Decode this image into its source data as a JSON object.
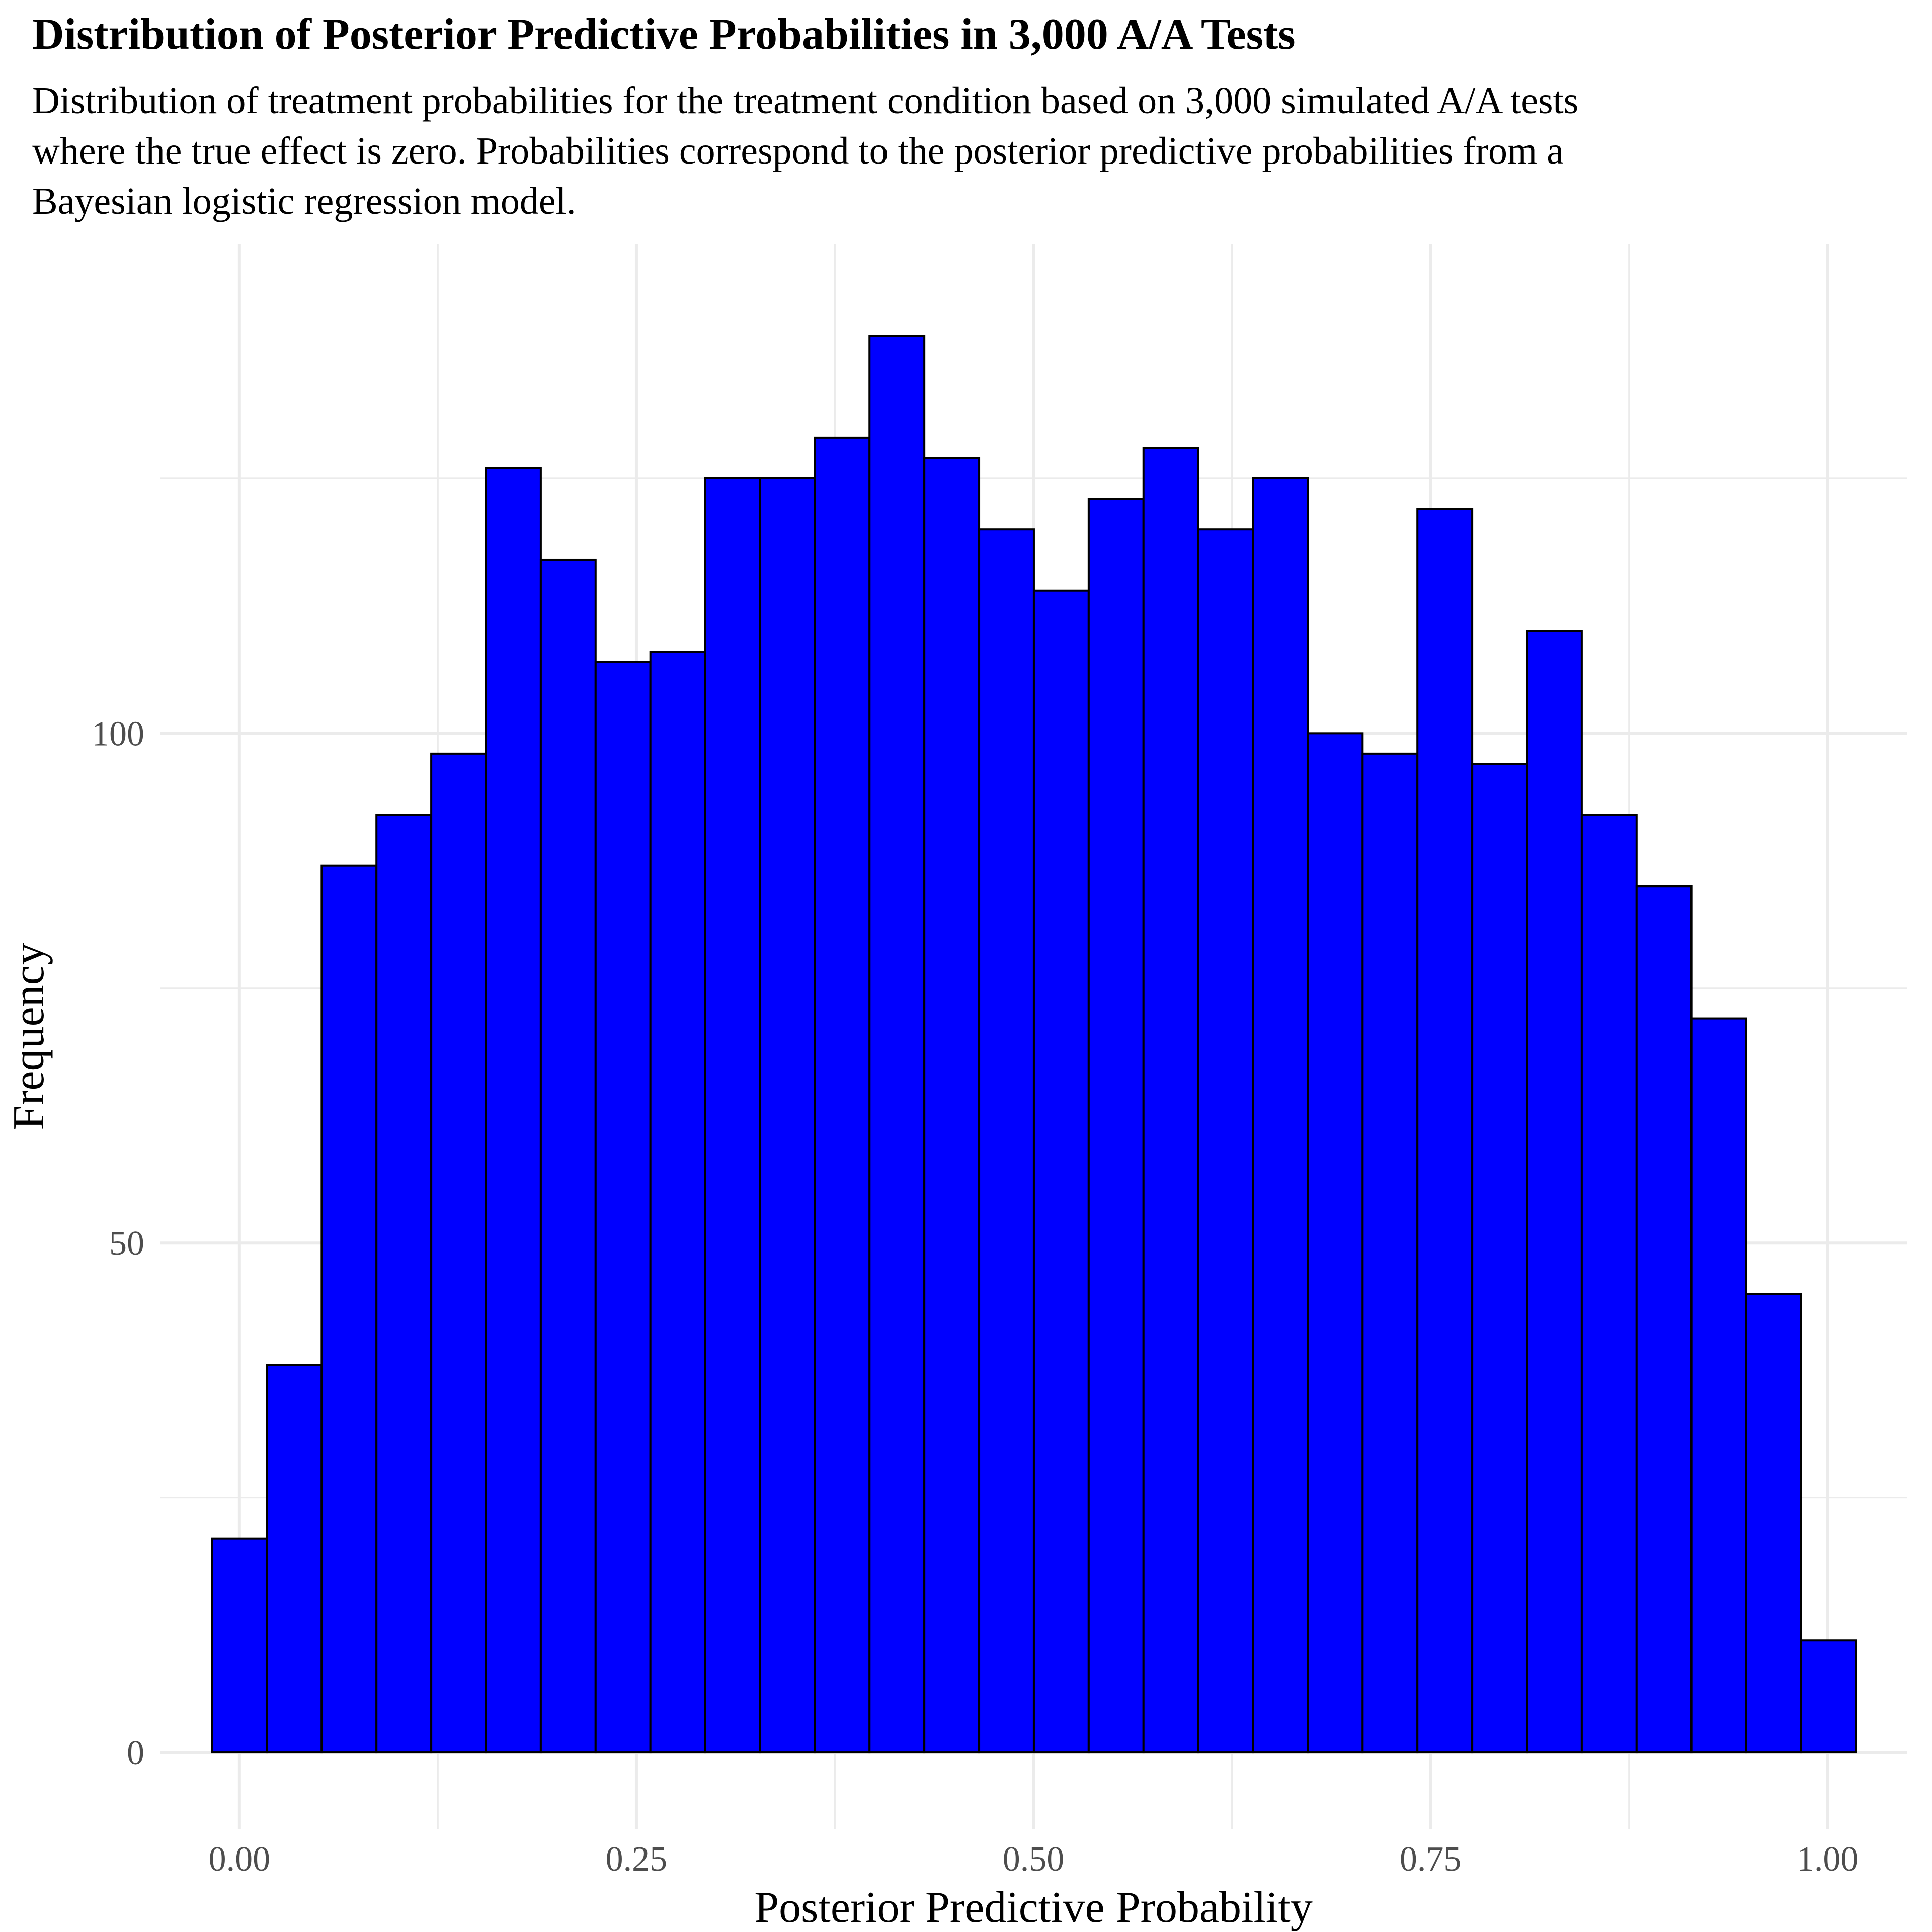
{
  "chart_data": {
    "type": "bar",
    "title": "Distribution of Posterior Predictive Probabilities in 3,000 A/A Tests",
    "subtitle": "Distribution of treatment probabilities for the treatment condition based on 3,000 simulated A/A tests\nwhere the true effect is zero. Probabilities correspond to the posterior predictive probabilities from a\nBayesian logistic regression model.",
    "xlabel": "Posterior Predictive Probability",
    "ylabel": "Frequency",
    "bin_width": 0.0345,
    "bins_start": -0.0172,
    "values": [
      21,
      38,
      87,
      92,
      98,
      126,
      117,
      107,
      108,
      125,
      125,
      129,
      139,
      127,
      120,
      114,
      123,
      128,
      120,
      125,
      100,
      98,
      122,
      97,
      110,
      92,
      85,
      72,
      45,
      11
    ],
    "xlim": [
      -0.05,
      1.05
    ],
    "ylim": [
      -7.5,
      148
    ],
    "x_ticks": [
      0,
      0.25,
      0.5,
      0.75,
      1
    ],
    "x_tick_labels": [
      "0.00",
      "0.25",
      "0.50",
      "0.75",
      "1.00"
    ],
    "y_ticks": [
      0,
      50,
      100
    ],
    "y_tick_labels": [
      "0",
      "50",
      "100"
    ],
    "bar_color": "#0000FF",
    "bar_outline": "#000000",
    "grid_color": "#EBEBEB",
    "grid": true,
    "legend": "none"
  }
}
